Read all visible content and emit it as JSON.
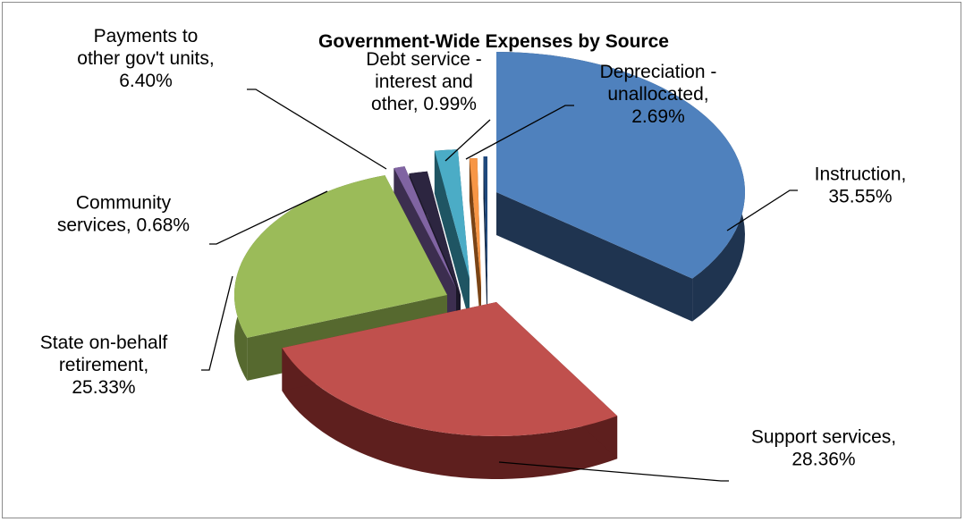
{
  "chart_data": {
    "type": "pie",
    "title": "Government-Wide Expenses by Source",
    "slices": [
      {
        "name": "Instruction",
        "value": 35.55,
        "label_lines": [
          "Instruction,",
          "35.55%"
        ],
        "color": "#4f81bd",
        "dark": "#1f3450"
      },
      {
        "name": "Support services",
        "value": 28.36,
        "label_lines": [
          "Support services,",
          "28.36%"
        ],
        "color": "#c0504d",
        "dark": "#5e1f1e"
      },
      {
        "name": "State on-behalf retirement",
        "value": 25.33,
        "label_lines": [
          "State on-behalf",
          "retirement,",
          "25.33%"
        ],
        "color": "#9bbb59",
        "dark": "#56692f"
      },
      {
        "name": "Community services",
        "value": 0.68,
        "label_lines": [
          "Community",
          "services, 0.68%"
        ],
        "color": "#8064a2",
        "dark": "#3c2e4f"
      },
      {
        "name": "",
        "value": 2.0,
        "label_lines": [],
        "color": "#2c2540",
        "dark": "#1b1728"
      },
      {
        "name": "Payments to other gov't units",
        "value": 6.4,
        "label_lines": [
          "Payments to",
          "other gov't units,",
          "6.40%"
        ],
        "color": "#4bacc6",
        "dark": "#1f5563"
      },
      {
        "name": "Debt service - interest and other",
        "value": 0.99,
        "label_lines": [
          "Debt service -",
          "interest and",
          "other, 0.99%"
        ],
        "color": "#f79646",
        "dark": "#7a4416"
      },
      {
        "name": "Depreciation - unallocated",
        "value": 2.69,
        "label_lines": [
          "Depreciation -",
          "unallocated,",
          "2.69%"
        ],
        "color": "#1f497d",
        "dark": "#0f2440"
      }
    ]
  }
}
